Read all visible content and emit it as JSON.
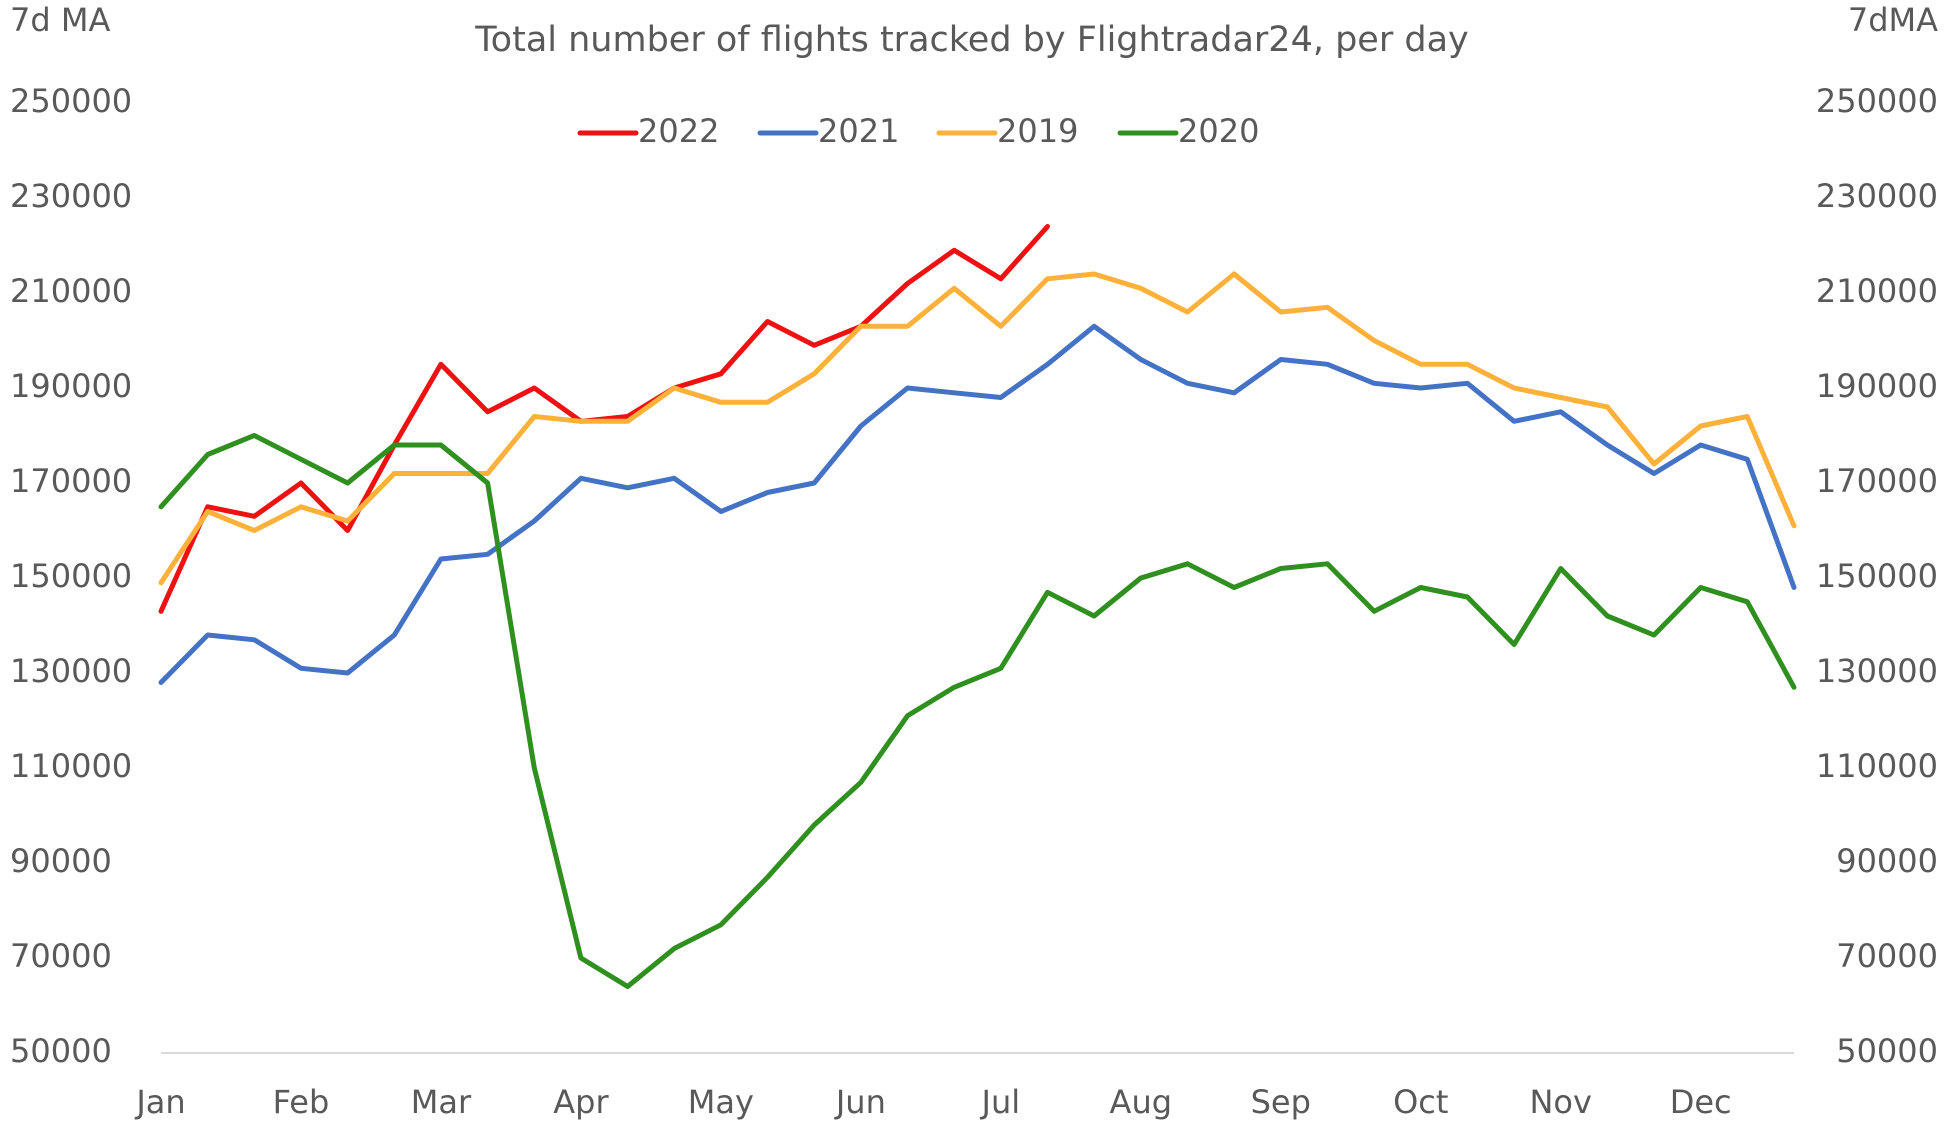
{
  "chart_data": {
    "type": "line",
    "title": "Total number of flights tracked by Flightradar24, per day",
    "y_label": "7d MA",
    "y2_label": "7dMA",
    "categories": [
      "Jan",
      null,
      null,
      "Feb",
      null,
      null,
      "Mar",
      null,
      null,
      "Apr",
      null,
      null,
      "May",
      null,
      null,
      "Jun",
      null,
      null,
      "Jul",
      null,
      null,
      "Aug",
      null,
      null,
      "Sep",
      null,
      null,
      "Oct",
      null,
      null,
      "Nov",
      null,
      null,
      "Dec",
      null,
      null
    ],
    "series": [
      {
        "name": "2022",
        "color": "#ee1111",
        "values": [
          143000,
          165000,
          163000,
          170000,
          160000,
          178000,
          195000,
          185000,
          190000,
          183000,
          184000,
          190000,
          193000,
          204000,
          199000,
          203000,
          212000,
          219000,
          213000,
          224000,
          null,
          null,
          null,
          null,
          null,
          null,
          null,
          null,
          null,
          null,
          null,
          null,
          null,
          null,
          null,
          null
        ]
      },
      {
        "name": "2021",
        "color": "#4472c4",
        "values": [
          128000,
          138000,
          137000,
          131000,
          130000,
          138000,
          154000,
          155000,
          162000,
          171000,
          169000,
          171000,
          164000,
          168000,
          170000,
          182000,
          190000,
          189000,
          188000,
          195000,
          203000,
          196000,
          191000,
          189000,
          196000,
          195000,
          191000,
          190000,
          191000,
          183000,
          185000,
          178000,
          172000,
          178000,
          175000,
          148000
        ]
      },
      {
        "name": "2019",
        "color": "#fdb03a",
        "values": [
          149000,
          164000,
          160000,
          165000,
          162000,
          172000,
          172000,
          172000,
          184000,
          183000,
          183000,
          190000,
          187000,
          187000,
          193000,
          203000,
          203000,
          211000,
          203000,
          213000,
          214000,
          211000,
          206000,
          214000,
          206000,
          207000,
          200000,
          195000,
          195000,
          190000,
          188000,
          186000,
          174000,
          182000,
          184000,
          161000
        ]
      },
      {
        "name": "2020",
        "color": "#2f8f1f",
        "values": [
          165000,
          176000,
          180000,
          175000,
          170000,
          178000,
          178000,
          170000,
          110000,
          70000,
          64000,
          72000,
          77000,
          87000,
          98000,
          107000,
          121000,
          127000,
          131000,
          147000,
          142000,
          150000,
          153000,
          148000,
          152000,
          153000,
          143000,
          148000,
          146000,
          136000,
          152000,
          142000,
          138000,
          148000,
          145000,
          127000
        ]
      }
    ],
    "ylim": [
      50000,
      250000
    ],
    "yticks": [
      50000,
      70000,
      90000,
      110000,
      130000,
      150000,
      170000,
      190000,
      210000,
      230000,
      250000
    ],
    "y2lim": [
      50000,
      250000
    ],
    "y2ticks": [
      50000,
      70000,
      90000,
      110000,
      130000,
      150000,
      170000,
      190000,
      210000,
      230000,
      250000
    ],
    "grid": false,
    "legend": "top"
  }
}
